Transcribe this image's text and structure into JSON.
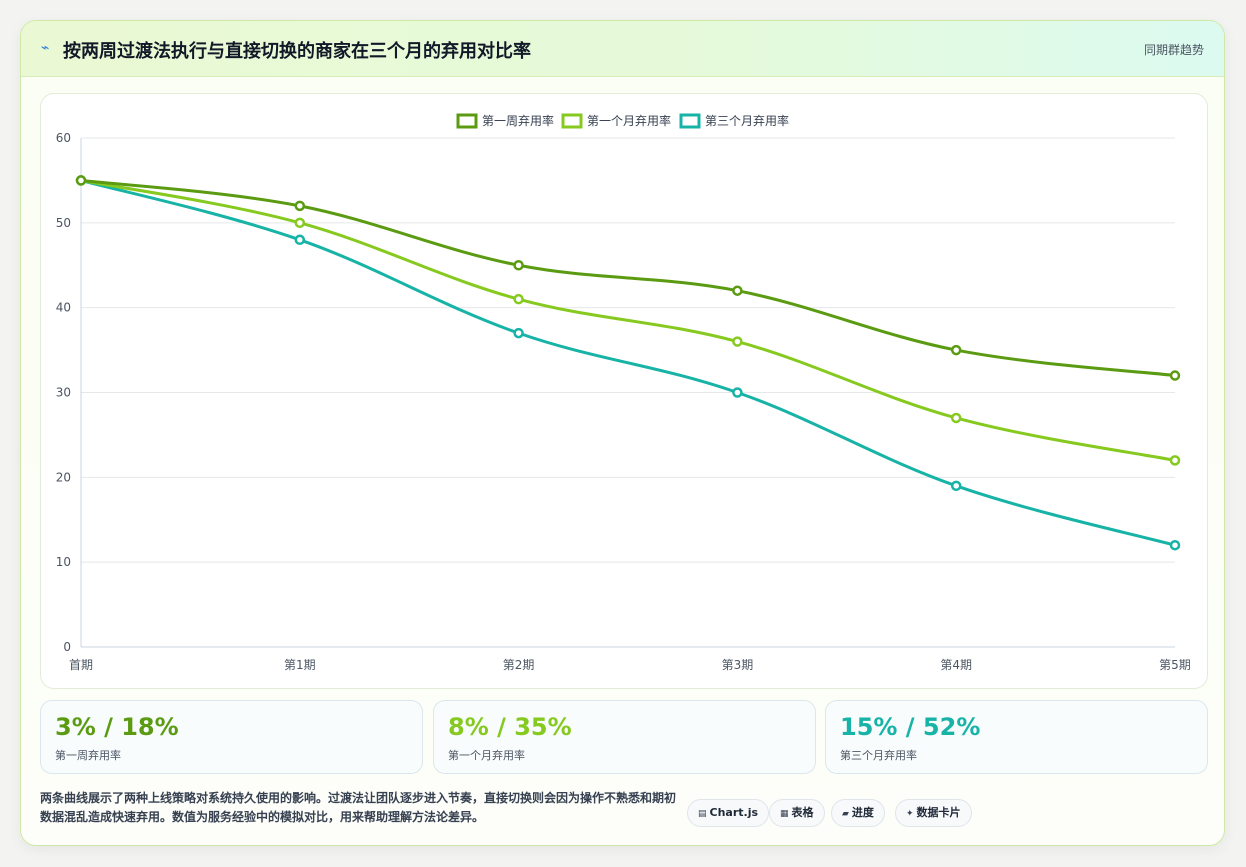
{
  "header": {
    "icon": "trend-icon",
    "title": "按两周过渡法执行与直接切换的商家在三个月的弃用对比率",
    "tag": "同期群趋势"
  },
  "colors": {
    "series1": "#5b9b12",
    "series2": "#86c91f",
    "series3": "#17b3a6",
    "grid": "#e5e7eb",
    "tick": "#4b5563"
  },
  "chart_data": {
    "type": "line",
    "categories": [
      "首期",
      "第1期",
      "第2期",
      "第3期",
      "第4期",
      "第5期"
    ],
    "series": [
      {
        "name": "第一周弃用率",
        "values": [
          55,
          52,
          45,
          42,
          35,
          32
        ]
      },
      {
        "name": "第一个月弃用率",
        "values": [
          55,
          50,
          41,
          36,
          27,
          22
        ]
      },
      {
        "name": "第三个月弃用率",
        "values": [
          55,
          48,
          37,
          30,
          19,
          12
        ]
      }
    ],
    "ylim": [
      0,
      60
    ],
    "yticks": [
      0,
      10,
      20,
      30,
      40,
      50,
      60
    ],
    "grid": true,
    "legend": "top-center"
  },
  "stats": [
    {
      "value": "3% / 18%",
      "label": "第一周弃用率"
    },
    {
      "value": "8% / 35%",
      "label": "第一个月弃用率"
    },
    {
      "value": "15% / 52%",
      "label": "第三个月弃用率"
    }
  ],
  "footnote": "两条曲线展示了两种上线策略对系统持久使用的影响。过渡法让团队逐步进入节奏，直接切换则会因为操作不熟悉和期初数据混乱造成快速弃用。数值为服务经验中的模拟对比，用来帮助理解方法论差异。",
  "chips": [
    {
      "icon": "▤",
      "label": "Chart.js"
    },
    {
      "icon": "▦",
      "label": "表格"
    },
    {
      "icon": "▰",
      "label": "进度"
    },
    {
      "icon": "✦",
      "label": "数据卡片"
    }
  ]
}
